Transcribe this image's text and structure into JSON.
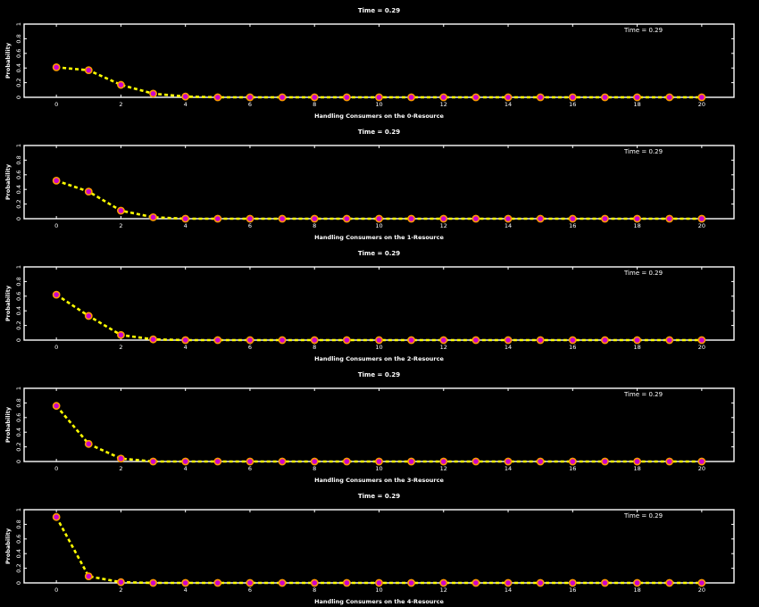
{
  "colors": {
    "background": "#000000",
    "axes": "#ffffff",
    "series_line": "#ffff00",
    "marker_face": "#cc00cc",
    "marker_edge": "#ff9900"
  },
  "chart_data": [
    {
      "type": "line",
      "title": "Time = 0.29",
      "annotation": "Time = 0.29",
      "xlabel": "Handling Consumers on the 0-Resource",
      "ylabel": "Probability",
      "xlim": [
        -1,
        21
      ],
      "ylim": [
        0,
        1
      ],
      "xticks": [
        "0",
        "2",
        "4",
        "6",
        "8",
        "10",
        "12",
        "14",
        "16",
        "18",
        "20"
      ],
      "yticks": [
        "0",
        "0.2",
        "0.4",
        "0.6",
        "0.8",
        "1"
      ],
      "grid": false,
      "x": [
        0,
        1,
        2,
        3,
        4,
        5,
        6,
        7,
        8,
        9,
        10,
        11,
        12,
        13,
        14,
        15,
        16,
        17,
        18,
        19,
        20
      ],
      "values": [
        0.41,
        0.37,
        0.17,
        0.05,
        0.01,
        0,
        0,
        0,
        0,
        0,
        0,
        0,
        0,
        0,
        0,
        0,
        0,
        0,
        0,
        0,
        0
      ]
    },
    {
      "type": "line",
      "title": "Time = 0.29",
      "annotation": "Time = 0.29",
      "xlabel": "Handling Consumers on the 1-Resource",
      "ylabel": "Probability",
      "xlim": [
        -1,
        21
      ],
      "ylim": [
        0,
        1
      ],
      "xticks": [
        "0",
        "2",
        "4",
        "6",
        "8",
        "10",
        "12",
        "14",
        "16",
        "18",
        "20"
      ],
      "yticks": [
        "0",
        "0.2",
        "0.4",
        "0.6",
        "0.8",
        "1"
      ],
      "grid": false,
      "x": [
        0,
        1,
        2,
        3,
        4,
        5,
        6,
        7,
        8,
        9,
        10,
        11,
        12,
        13,
        14,
        15,
        16,
        17,
        18,
        19,
        20
      ],
      "values": [
        0.52,
        0.37,
        0.11,
        0.02,
        0,
        0,
        0,
        0,
        0,
        0,
        0,
        0,
        0,
        0,
        0,
        0,
        0,
        0,
        0,
        0,
        0
      ]
    },
    {
      "type": "line",
      "title": "Time = 0.29",
      "annotation": "Time = 0.29",
      "xlabel": "Handling Consumers on the 2-Resource",
      "ylabel": "Probability",
      "xlim": [
        -1,
        21
      ],
      "ylim": [
        0,
        1
      ],
      "xticks": [
        "0",
        "2",
        "4",
        "6",
        "8",
        "10",
        "12",
        "14",
        "16",
        "18",
        "20"
      ],
      "yticks": [
        "0",
        "0.2",
        "0.4",
        "0.6",
        "0.8",
        "1"
      ],
      "grid": false,
      "x": [
        0,
        1,
        2,
        3,
        4,
        5,
        6,
        7,
        8,
        9,
        10,
        11,
        12,
        13,
        14,
        15,
        16,
        17,
        18,
        19,
        20
      ],
      "values": [
        0.62,
        0.33,
        0.07,
        0.01,
        0,
        0,
        0,
        0,
        0,
        0,
        0,
        0,
        0,
        0,
        0,
        0,
        0,
        0,
        0,
        0,
        0
      ]
    },
    {
      "type": "line",
      "title": "Time = 0.29",
      "annotation": "Time = 0.29",
      "xlabel": "Handling Consumers on the 3-Resource",
      "ylabel": "Probability",
      "xlim": [
        -1,
        21
      ],
      "ylim": [
        0,
        1
      ],
      "xticks": [
        "0",
        "2",
        "4",
        "6",
        "8",
        "10",
        "12",
        "14",
        "16",
        "18",
        "20"
      ],
      "yticks": [
        "0",
        "0.2",
        "0.4",
        "0.6",
        "0.8",
        "1"
      ],
      "grid": false,
      "x": [
        0,
        1,
        2,
        3,
        4,
        5,
        6,
        7,
        8,
        9,
        10,
        11,
        12,
        13,
        14,
        15,
        16,
        17,
        18,
        19,
        20
      ],
      "values": [
        0.76,
        0.24,
        0.04,
        0,
        0,
        0,
        0,
        0,
        0,
        0,
        0,
        0,
        0,
        0,
        0,
        0,
        0,
        0,
        0,
        0,
        0
      ]
    },
    {
      "type": "line",
      "title": "Time = 0.29",
      "annotation": "Time = 0.29",
      "xlabel": "Handling Consumers on the 4-Resource",
      "ylabel": "Probability",
      "xlim": [
        -1,
        21
      ],
      "ylim": [
        0,
        1
      ],
      "xticks": [
        "0",
        "2",
        "4",
        "6",
        "8",
        "10",
        "12",
        "14",
        "16",
        "18",
        "20"
      ],
      "yticks": [
        "0",
        "0.2",
        "0.4",
        "0.6",
        "0.8",
        "1"
      ],
      "grid": false,
      "x": [
        0,
        1,
        2,
        3,
        4,
        5,
        6,
        7,
        8,
        9,
        10,
        11,
        12,
        13,
        14,
        15,
        16,
        17,
        18,
        19,
        20
      ],
      "values": [
        0.9,
        0.09,
        0.01,
        0,
        0,
        0,
        0,
        0,
        0,
        0,
        0,
        0,
        0,
        0,
        0,
        0,
        0,
        0,
        0,
        0,
        0
      ]
    }
  ]
}
